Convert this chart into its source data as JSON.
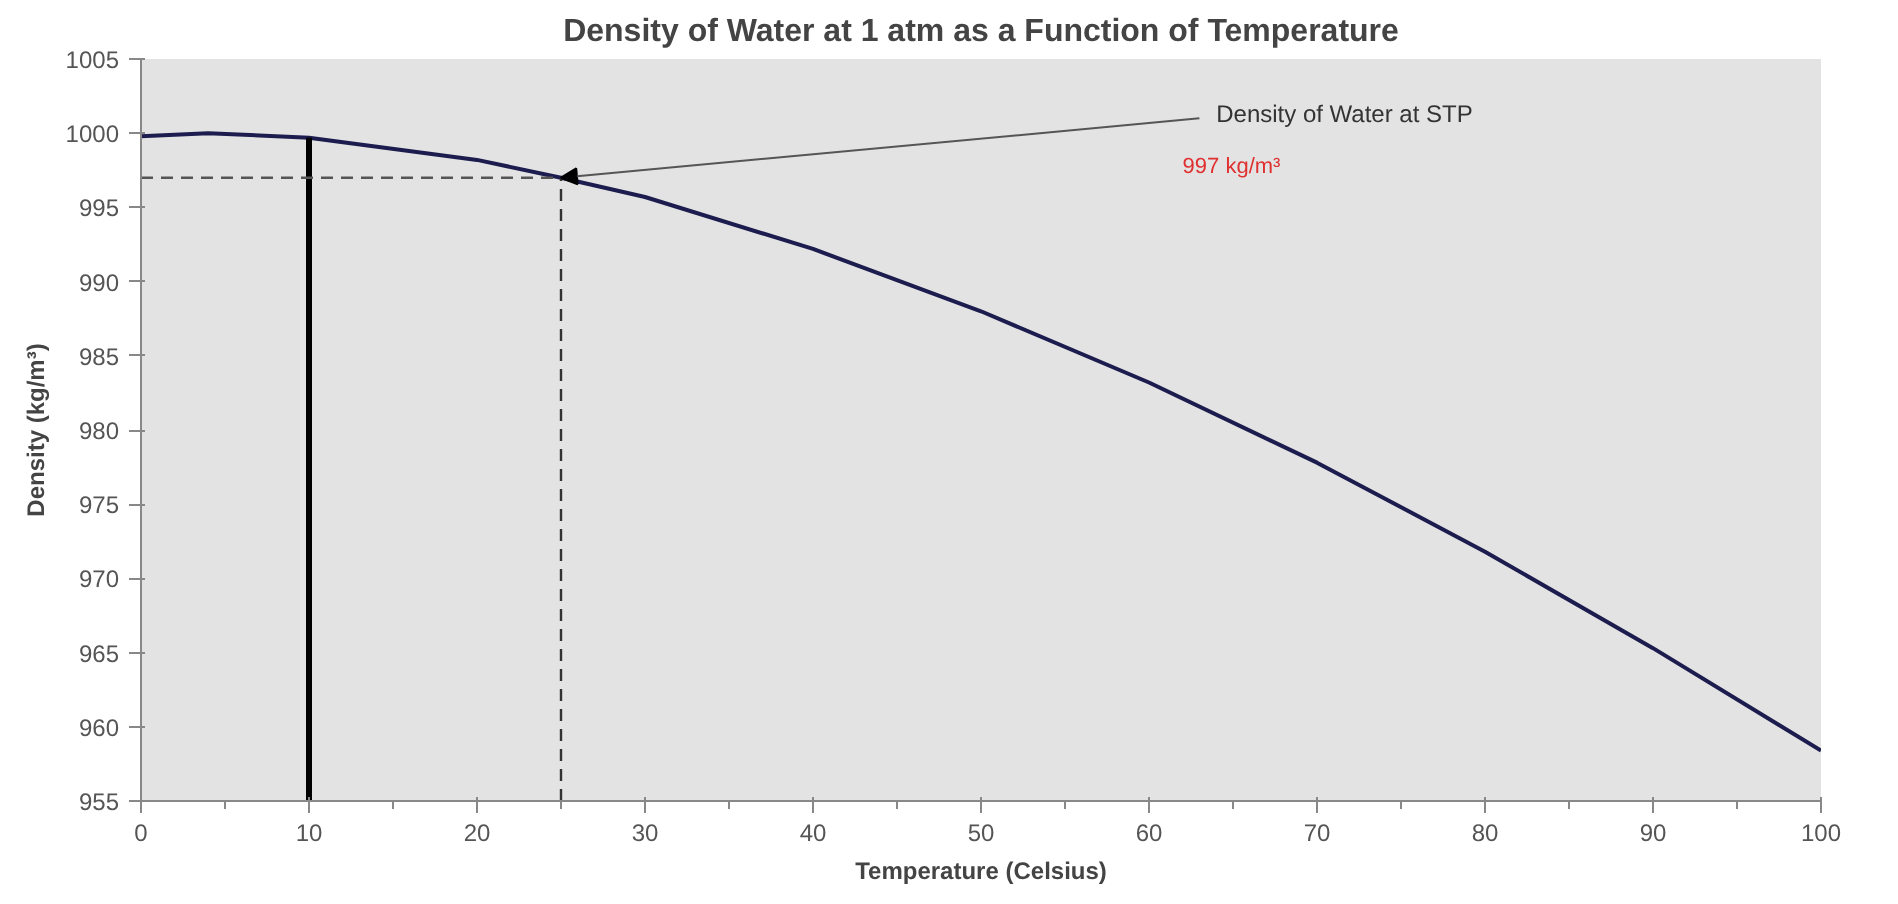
{
  "chart_data": {
    "type": "line",
    "title": "Density of Water at 1 atm as a Function of Temperature",
    "xlabel": "Temperature (Celsius)",
    "ylabel": "Density (kg/m³)",
    "x": [
      0,
      4,
      10,
      20,
      25,
      30,
      40,
      50,
      60,
      70,
      80,
      90,
      100
    ],
    "series": [
      {
        "color": "#1c1c4e",
        "values": [
          999.8,
          1000.0,
          999.7,
          998.2,
          997.0,
          995.7,
          992.2,
          988.0,
          983.2,
          977.8,
          971.8,
          965.3,
          958.4
        ]
      }
    ],
    "xlim": [
      0,
      100
    ],
    "xticks": [
      0,
      10,
      20,
      30,
      40,
      50,
      60,
      70,
      80,
      90,
      100
    ],
    "ylim": [
      955,
      1005
    ],
    "yticks": [
      955,
      960,
      965,
      970,
      975,
      980,
      985,
      990,
      995,
      1000,
      1005
    ],
    "marker": "none",
    "line_style": "solid",
    "ref_lines": [
      {
        "axis": "x",
        "value": 10,
        "color": "#000000",
        "line_style": "solid"
      },
      {
        "axis": "x",
        "value": 25,
        "color": "#333333",
        "line_style": "dashed"
      },
      {
        "axis": "y",
        "value": 997,
        "color": "#555555",
        "line_style": "dashed"
      }
    ],
    "annotations": [
      {
        "text": "Density of Water at STP",
        "x": 25,
        "y": 997
      },
      "997  kg/m³"
    ]
  }
}
